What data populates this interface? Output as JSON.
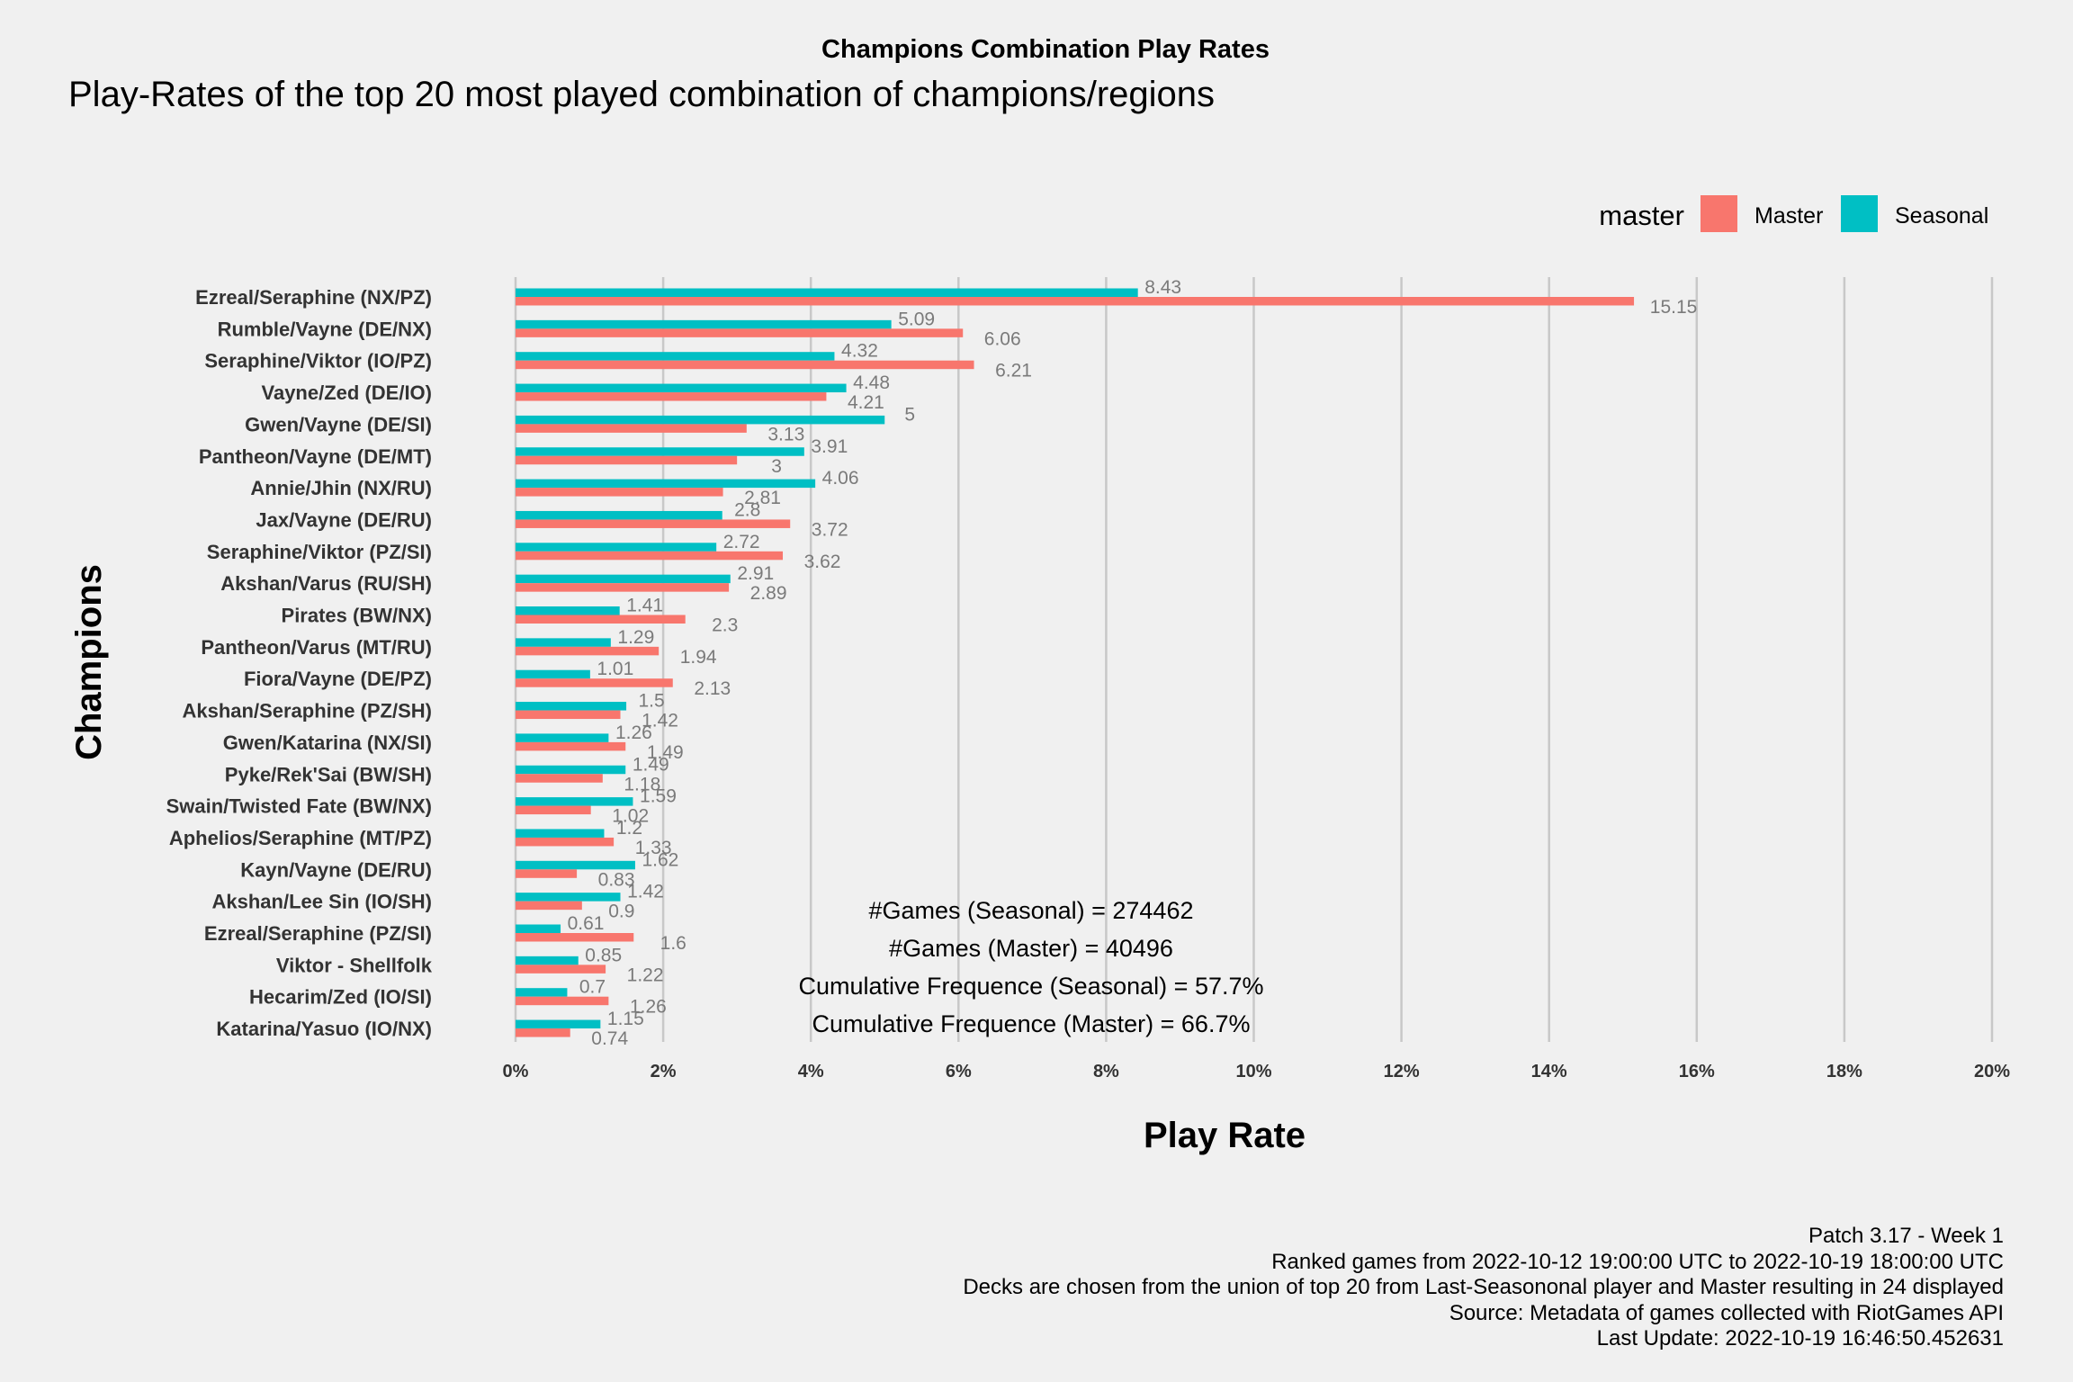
{
  "chart_data": {
    "type": "bar",
    "orientation": "horizontal",
    "title": "Champions Combination Play Rates",
    "subtitle": "Play-Rates of the top 20 most played combination of champions/regions",
    "xlabel": "Play Rate",
    "ylabel": "Champions",
    "xlim": [
      0,
      20
    ],
    "x_ticks": [
      "0%",
      "2%",
      "4%",
      "6%",
      "8%",
      "10%",
      "12%",
      "14%",
      "16%",
      "18%",
      "20%"
    ],
    "grid": true,
    "legend": {
      "title": "master",
      "placement": "top-right",
      "entries": [
        "Master",
        "Seasonal"
      ]
    },
    "categories": [
      "Ezreal/Seraphine (NX/PZ)",
      "Rumble/Vayne (DE/NX)",
      "Seraphine/Viktor (IO/PZ)",
      "Vayne/Zed (DE/IO)",
      "Gwen/Vayne (DE/SI)",
      "Pantheon/Vayne (DE/MT)",
      "Annie/Jhin (NX/RU)",
      "Jax/Vayne (DE/RU)",
      "Seraphine/Viktor (PZ/SI)",
      "Akshan/Varus (RU/SH)",
      "Pirates (BW/NX)",
      "Pantheon/Varus (MT/RU)",
      "Fiora/Vayne (DE/PZ)",
      "Akshan/Seraphine (PZ/SH)",
      "Gwen/Katarina (NX/SI)",
      "Pyke/Rek'Sai (BW/SH)",
      "Swain/Twisted Fate (BW/NX)",
      "Aphelios/Seraphine (MT/PZ)",
      "Kayn/Vayne (DE/RU)",
      "Akshan/Lee Sin (IO/SH)",
      "Ezreal/Seraphine (PZ/SI)",
      "Viktor - Shellfolk",
      "Hecarim/Zed (IO/SI)",
      "Katarina/Yasuo (IO/NX)"
    ],
    "series": [
      {
        "name": "Seasonal",
        "color": "#00bfc4",
        "values": [
          8.43,
          5.09,
          4.32,
          4.48,
          5,
          3.91,
          4.06,
          2.8,
          2.72,
          2.91,
          1.41,
          1.29,
          1.01,
          1.5,
          1.26,
          1.49,
          1.59,
          1.2,
          1.62,
          1.42,
          0.61,
          0.85,
          0.7,
          1.15
        ],
        "labels": [
          "8.43",
          "5.09",
          "4.32",
          "4.48",
          "5",
          "3.91",
          "4.06",
          "2.8",
          "2.72",
          "2.91",
          "1.41",
          "1.29",
          "1.01",
          "1.5",
          "1.26",
          "1.49",
          "1.59",
          "1.2",
          "1.62",
          "1.42",
          "0.61",
          "0.85",
          "0.7",
          "1.15"
        ]
      },
      {
        "name": "Master",
        "color": "#f8766d",
        "values": [
          15.15,
          6.06,
          6.21,
          4.21,
          3.13,
          3,
          2.81,
          3.72,
          3.62,
          2.89,
          2.3,
          1.94,
          2.13,
          1.42,
          1.49,
          1.18,
          1.02,
          1.33,
          0.83,
          0.9,
          1.6,
          1.22,
          1.26,
          0.74
        ],
        "labels": [
          "15.15",
          "6.06",
          "6.21",
          "4.21",
          "3.13",
          "3",
          "2.81",
          "3.72",
          "3.62",
          "2.89",
          "2.3",
          "1.94",
          "2.13",
          "1.42",
          "1.49",
          "1.18",
          "1.02",
          "1.33",
          "0.83",
          "0.9",
          "1.6",
          "1.22",
          "1.26",
          "0.74"
        ]
      }
    ],
    "annotations": [
      "#Games (Seasonal) = 274462",
      "#Games (Master) = 40496",
      "Cumulative Frequence (Seasonal) = 57.7%",
      "Cumulative Frequence (Master) = 66.7%"
    ],
    "caption": [
      "Patch 3.17 - Week 1",
      "Ranked games from 2022-10-12 19:00:00 UTC to 2022-10-19 18:00:00 UTC",
      "Decks are chosen from the union of top 20 from Last-Seasononal player and Master resulting in 24 displayed",
      "Source: Metadata of games collected with RiotGames API",
      "Last Update: 2022-10-19 16:46:50.452631"
    ]
  }
}
